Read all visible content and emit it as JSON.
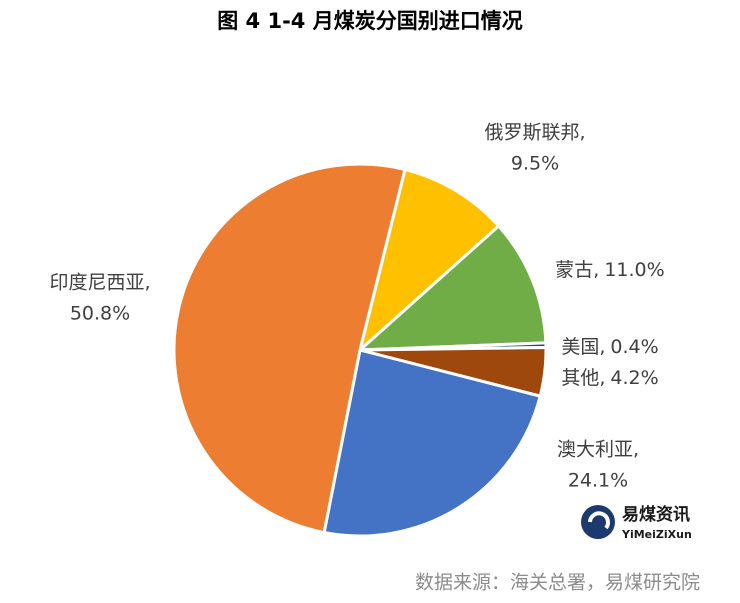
{
  "chart_data": {
    "type": "pie",
    "title": "图 4 1-4 月煤炭分国别进口情况",
    "categories": [
      "俄罗斯联邦,",
      "蒙古,",
      "美国,",
      "其他,",
      "澳大利亚,",
      "印度尼西亚,"
    ],
    "values": [
      9.5,
      11.0,
      0.4,
      4.2,
      24.1,
      50.8
    ],
    "value_labels": [
      "9.5%",
      "11.0%",
      "0.4%",
      "4.2%",
      "24.1%",
      "50.8%"
    ],
    "colors": [
      "#FFC000",
      "#70AD47",
      "#264478",
      "#9E480E",
      "#4472C4",
      "#ED7D31"
    ],
    "source": "数据来源：海关总署，易煤研究院",
    "logo": {
      "name": "易煤资讯",
      "subtitle": "YiMeiZiXun"
    }
  }
}
